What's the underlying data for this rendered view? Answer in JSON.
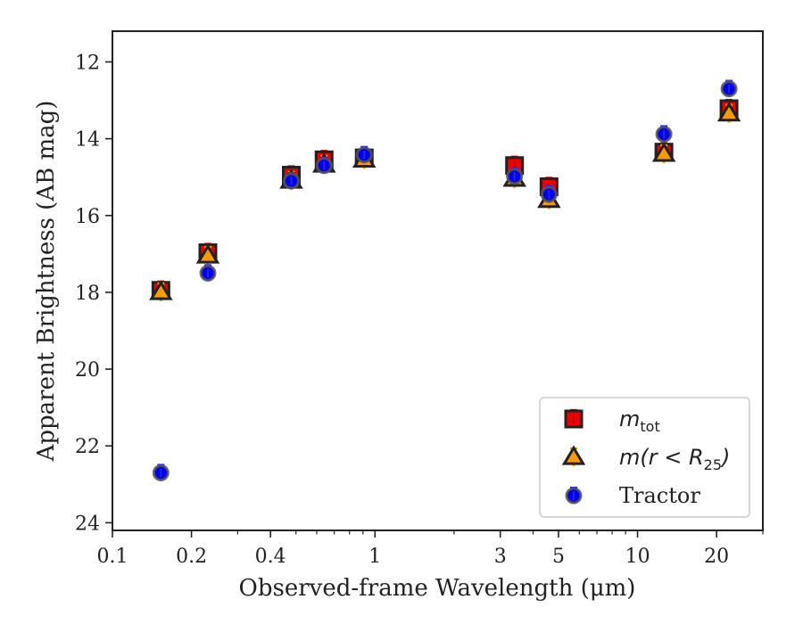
{
  "chart_data": {
    "type": "scatter",
    "xlabel": "Observed-frame Wavelength (μm)",
    "ylabel": "Apparent Brightness (AB mag)",
    "x_scale": "log",
    "xlim": [
      0.1,
      30
    ],
    "ylim": [
      24.2,
      11.2
    ],
    "y_inverted": true,
    "x_ticks": [
      {
        "value": 0.1,
        "label": "0.1"
      },
      {
        "value": 0.2,
        "label": "0.2"
      },
      {
        "value": 0.4,
        "label": "0.4"
      },
      {
        "value": 1,
        "label": "1"
      },
      {
        "value": 3,
        "label": "3"
      },
      {
        "value": 5,
        "label": "5"
      },
      {
        "value": 10,
        "label": "10"
      },
      {
        "value": 20,
        "label": "20"
      }
    ],
    "x_minor_ticks": [
      0.3,
      0.5,
      0.6,
      0.7,
      0.8,
      0.9,
      2,
      4,
      6,
      7,
      8,
      9,
      30
    ],
    "y_ticks": [
      {
        "value": 12,
        "label": "12"
      },
      {
        "value": 14,
        "label": "14"
      },
      {
        "value": 16,
        "label": "16"
      },
      {
        "value": 18,
        "label": "18"
      },
      {
        "value": 20,
        "label": "20"
      },
      {
        "value": 22,
        "label": "22"
      },
      {
        "value": 24,
        "label": "24"
      }
    ],
    "grid": false,
    "legend_position": "bottom-right",
    "series": [
      {
        "name": "m_tot",
        "legend_main": "m",
        "legend_sub": "tot",
        "marker": "square",
        "color": "#ee0000",
        "errcolor": "#cc0000",
        "x": [
          0.153,
          0.231,
          0.48,
          0.64,
          0.91,
          3.4,
          4.6,
          12.6,
          22.3
        ],
        "y": [
          17.95,
          16.97,
          14.95,
          14.55,
          14.5,
          14.7,
          15.25,
          14.35,
          13.22
        ]
      },
      {
        "name": "m(r < R25)",
        "legend_main": "m(r < R",
        "legend_sub": "25",
        "legend_close": ")",
        "marker": "triangle",
        "color": "#ff9900",
        "errcolor": "#e8a000",
        "x": [
          0.153,
          0.231,
          0.48,
          0.64,
          0.91,
          3.4,
          4.6,
          12.6,
          22.3
        ],
        "y": [
          18.0,
          17.05,
          15.1,
          14.68,
          14.55,
          15.05,
          15.6,
          14.4,
          13.35
        ]
      },
      {
        "name": "Tractor",
        "legend_main": "Tractor",
        "marker": "circle",
        "color": "#0000ee",
        "errcolor": "#2222ff",
        "x": [
          0.153,
          0.231,
          0.48,
          0.64,
          0.91,
          3.4,
          4.6,
          12.6,
          22.3
        ],
        "y": [
          22.7,
          17.5,
          15.1,
          14.7,
          14.42,
          14.98,
          15.45,
          13.88,
          12.7
        ]
      }
    ]
  }
}
